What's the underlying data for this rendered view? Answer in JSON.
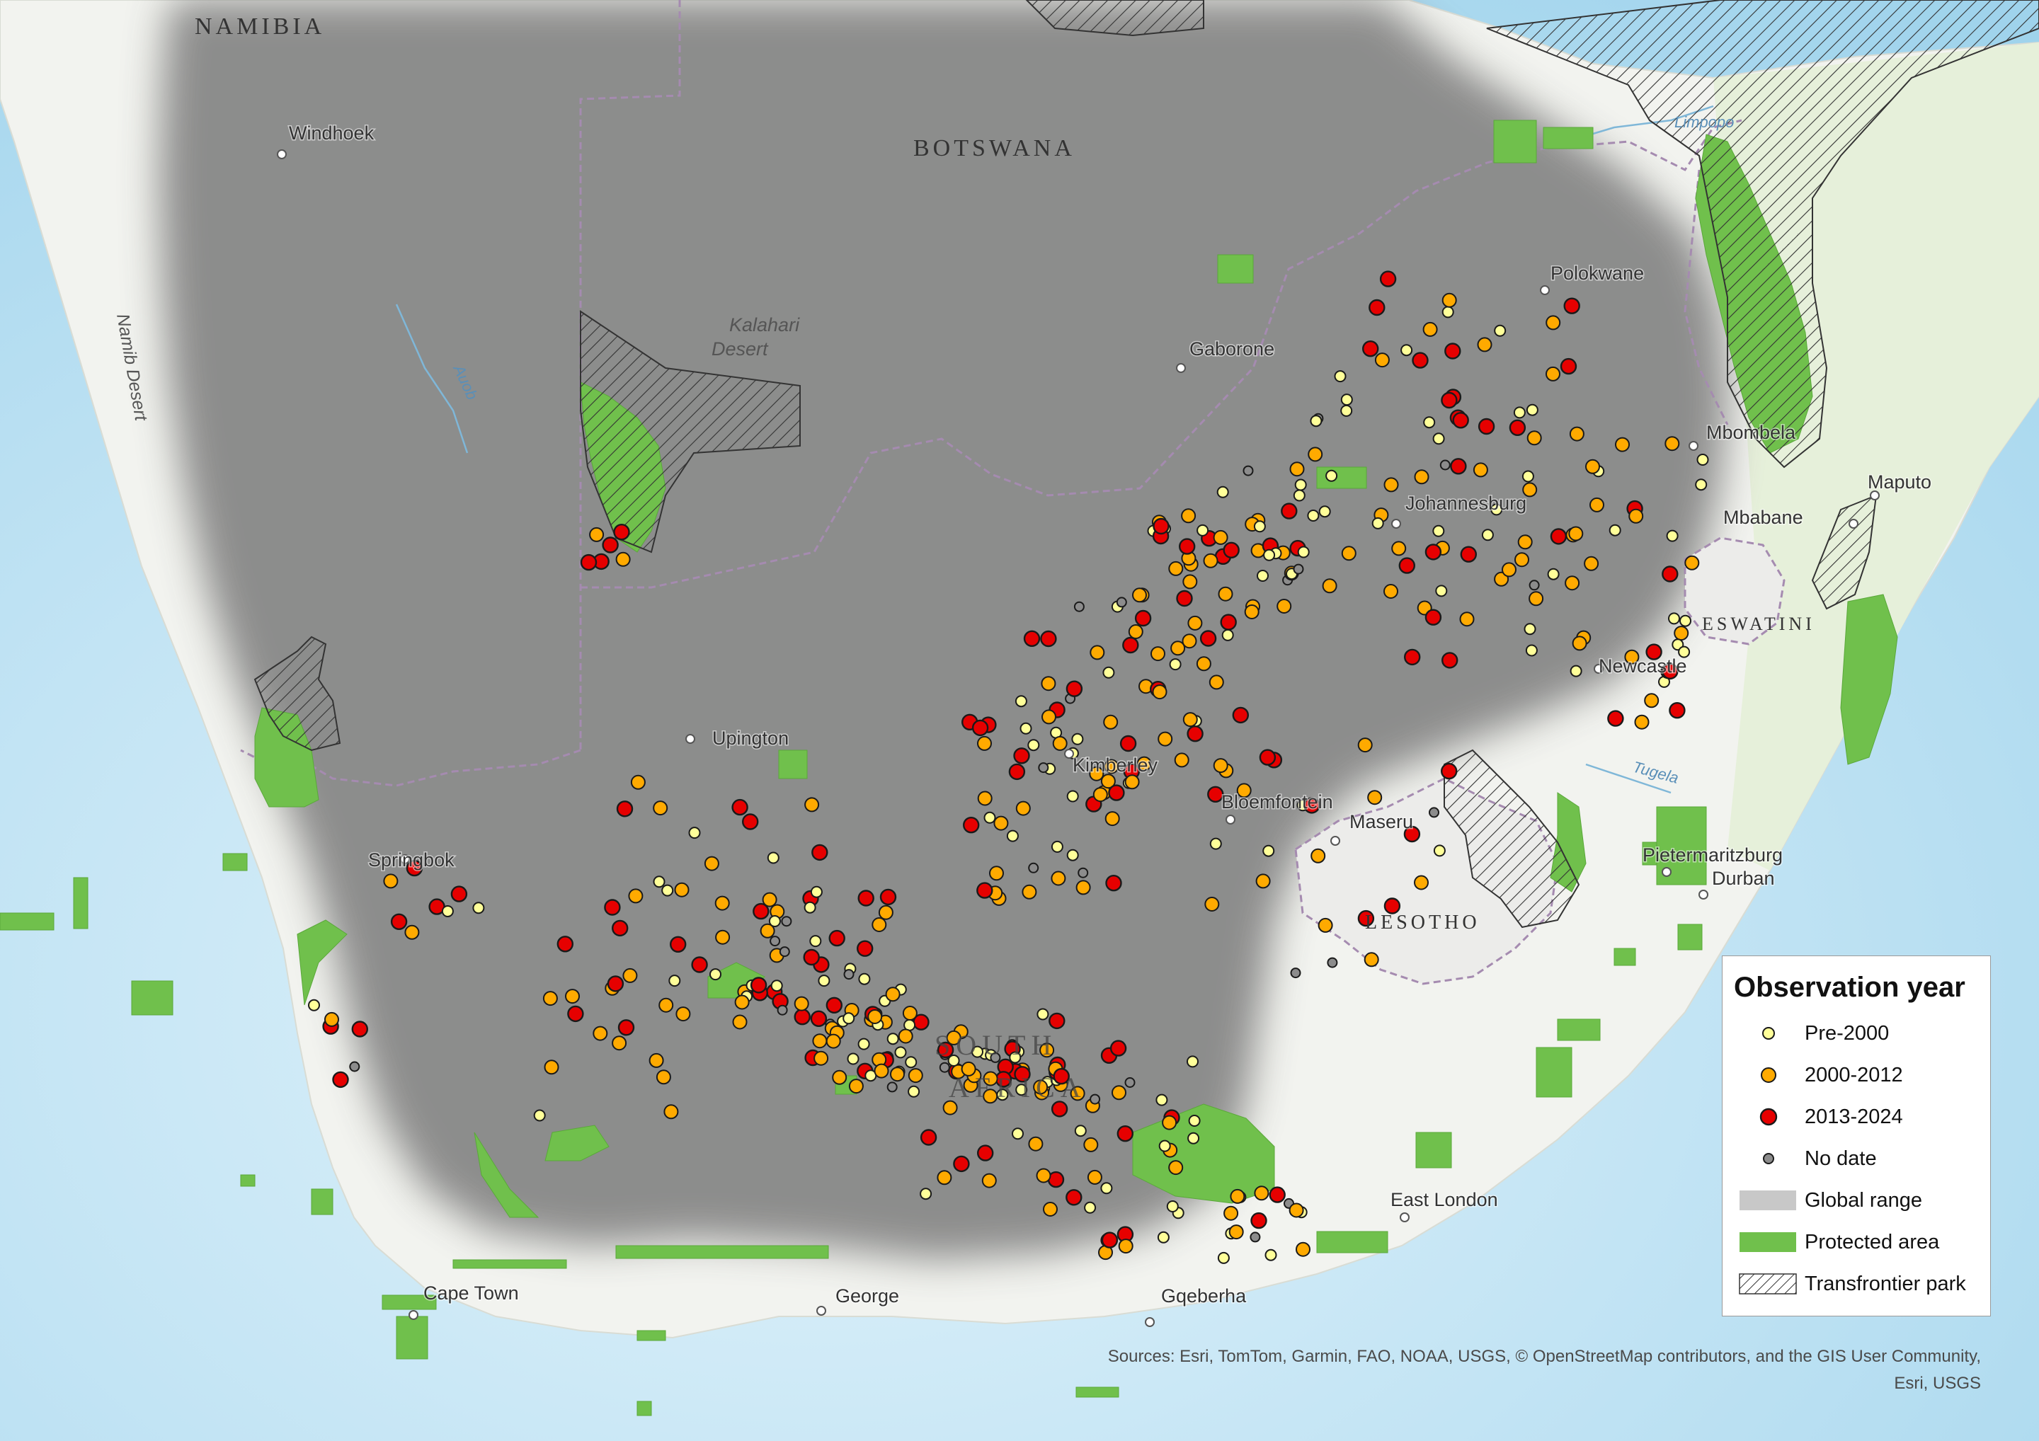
{
  "countries": [
    {
      "name": "NAMIBIA"
    },
    {
      "name": "BOTSWANA"
    },
    {
      "name": "SOUTH AFRICA"
    },
    {
      "name": "LESOTHO"
    },
    {
      "name": "ESWATINI"
    }
  ],
  "cities": [
    {
      "name": "Windhoek"
    },
    {
      "name": "Gaborone"
    },
    {
      "name": "Polokwane"
    },
    {
      "name": "Mbombela"
    },
    {
      "name": "Maputo"
    },
    {
      "name": "Mbabane"
    },
    {
      "name": "Johannesburg"
    },
    {
      "name": "Newcastle"
    },
    {
      "name": "Upington"
    },
    {
      "name": "Kimberley"
    },
    {
      "name": "Bloemfontein"
    },
    {
      "name": "Maseru"
    },
    {
      "name": "Pietermaritzburg"
    },
    {
      "name": "Durban"
    },
    {
      "name": "Springbok"
    },
    {
      "name": "East London"
    },
    {
      "name": "Cape Town"
    },
    {
      "name": "George"
    },
    {
      "name": "Gqeberha"
    }
  ],
  "physical_features": [
    {
      "name": "Namib Desert"
    },
    {
      "name": "Kalahari Desert"
    },
    {
      "name": "Auob"
    },
    {
      "name": "Limpopo"
    },
    {
      "name": "Tugela"
    }
  ],
  "legend": {
    "title": "Observation year",
    "items": [
      {
        "label": "Pre-2000",
        "color": "#ffff99"
      },
      {
        "label": "2000-2012",
        "color": "#ffaa00"
      },
      {
        "label": "2013-2024",
        "color": "#e60000"
      },
      {
        "label": "No date",
        "color": "#8c8c8c"
      },
      {
        "label": "Global range",
        "color": "#5a5a5a"
      },
      {
        "label": "Protected area",
        "color": "#70c04c"
      },
      {
        "label": "Transfrontier park",
        "color": "#333333"
      }
    ]
  },
  "sources_text": "Sources: Esri, TomTom, Garmin, FAO, NOAA, USGS, © OpenStreetMap contributors, and the GIS User Community,",
  "sources_text_2": "Esri, USGS",
  "colors": {
    "ocean": "#bfe3f3",
    "land": "#f3f5f1",
    "range": "#858585",
    "protected": "#70c04c",
    "point_outline": "#1a1a1a"
  }
}
